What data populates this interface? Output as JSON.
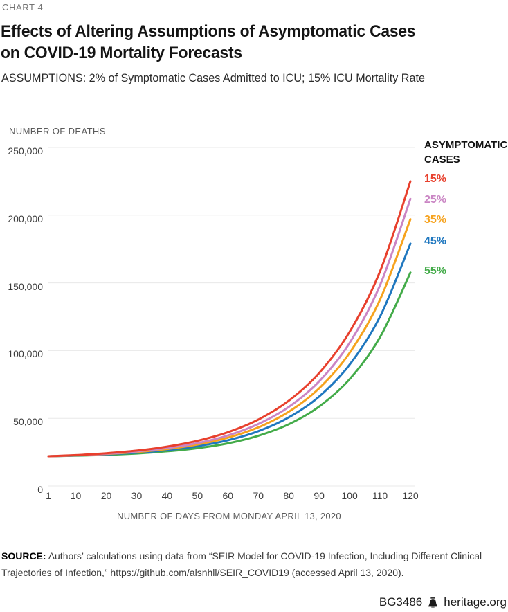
{
  "kicker": "CHART 4",
  "title_line1": "Effects of Altering Assumptions of Asymptomatic Cases",
  "title_line2": "on COVID-19 Mortality Forecasts",
  "subtitle": "ASSUMPTIONS: 2% of Symptomatic Cases Admitted to ICU; 15% ICU Mortality Rate",
  "chart_data": {
    "type": "line",
    "title": "Effects of Altering Assumptions of Asymptomatic Cases on COVID-19 Mortality Forecasts",
    "ylabel": "NUMBER OF DEATHS",
    "xlabel": "NUMBER OF DAYS FROM MONDAY APRIL 13, 2020",
    "legend_title": "ASYMPTOMATIC CASES",
    "legend_position": "right",
    "grid": "horizontal",
    "xlim": [
      1,
      120
    ],
    "ylim": [
      0,
      250000
    ],
    "x_ticks": [
      1,
      10,
      20,
      30,
      40,
      50,
      60,
      70,
      80,
      90,
      100,
      110,
      120
    ],
    "y_ticks": [
      {
        "v": 0,
        "label": "0"
      },
      {
        "v": 50000,
        "label": "50,000"
      },
      {
        "v": 100000,
        "label": "100,000"
      },
      {
        "v": 150000,
        "label": "150,000"
      },
      {
        "v": 200000,
        "label": "200,000"
      },
      {
        "v": 250000,
        "label": "250,000"
      }
    ],
    "x": [
      1,
      10,
      20,
      30,
      40,
      50,
      60,
      70,
      80,
      90,
      100,
      110,
      120
    ],
    "series": [
      {
        "name": "15%",
        "color": "#e8402d",
        "values": [
          22000,
          22800,
          24200,
          26100,
          29100,
          33400,
          39700,
          49100,
          63000,
          83500,
          113800,
          158500,
          225000
        ]
      },
      {
        "name": "25%",
        "color": "#ca85c4",
        "values": [
          22000,
          22700,
          23800,
          25500,
          28000,
          31700,
          37300,
          45800,
          58400,
          77300,
          105700,
          148300,
          212000
        ]
      },
      {
        "name": "35%",
        "color": "#f6a21d",
        "values": [
          22000,
          22600,
          23600,
          25100,
          27300,
          30700,
          35700,
          43300,
          54800,
          72200,
          98300,
          137600,
          197000
        ]
      },
      {
        "name": "45%",
        "color": "#1f77bf",
        "values": [
          22000,
          22500,
          23300,
          24600,
          26500,
          29400,
          33800,
          40500,
          50700,
          66100,
          89600,
          125100,
          179000
        ]
      },
      {
        "name": "55%",
        "color": "#43ab49",
        "values": [
          22000,
          22400,
          23000,
          24000,
          25600,
          27900,
          31500,
          37100,
          45600,
          58700,
          78900,
          109900,
          157600
        ]
      }
    ]
  },
  "source": {
    "label": "SOURCE:",
    "text": "Authors’ calculations using data from “SEIR Model for COVID-19 Infection, Including Different Clinical Trajectories of Infection,” https://github.com/alsnhll/SEIR_COVID19 (accessed April 13, 2020)."
  },
  "footer": {
    "id": "BG3486",
    "site": "heritage.org",
    "bell_icon": "liberty-bell"
  }
}
